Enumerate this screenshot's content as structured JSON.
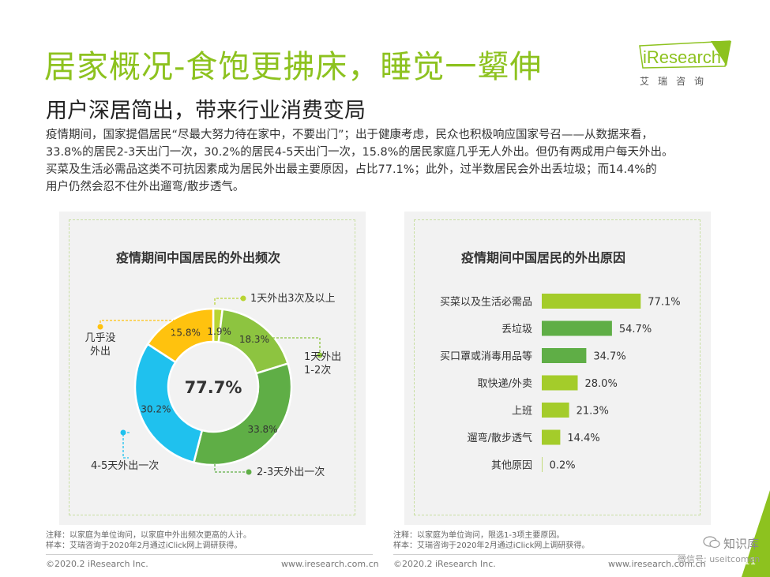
{
  "header": {
    "title": "居家概况-食饱更拂床，睡觉一颦伸",
    "subtitle": "用户深居简出，带来行业消费变局"
  },
  "logo": {
    "brand": "iResearch",
    "sub": "艾瑞咨询"
  },
  "description": [
    "疫情期间，国家提倡居民“尽最大努力待在家中，不要出门”；出于健康考虑，民众也积极响应国家号召——从数据来看，",
    "33.8%的居民2-3天出门一次，30.2%的居民4-5天出门一次，15.8%的居民家庭几乎无人外出。但仍有两成用户每天外出。",
    "买菜及生活必需品这类不可抗因素成为居民外出最主要原因，占比77.1%；此外，过半数居民会外出丢垃圾；而14.4%的",
    "用户仍然会忍不住外出遛弯/散步透气。"
  ],
  "chart_data": [
    {
      "type": "pie",
      "title": "疫情期间中国居民的外出频次",
      "center_label": "77.7%",
      "categories": [
        "1天外出3次及以上",
        "1天外出1-2次",
        "2-3天外出一次",
        "4-5天外出一次",
        "几乎没外出"
      ],
      "legend_labels": [
        "1天外出3次及以上",
        "1天外出\n1-2次",
        "2-3天外出一次",
        "4-5天外出一次",
        "几乎没\n外出"
      ],
      "values": [
        1.9,
        18.3,
        33.8,
        30.2,
        15.8
      ],
      "value_labels": [
        "1.9%",
        "18.3%",
        "33.8%",
        "30.2%",
        "15.8%"
      ],
      "colors": [
        "#b8d432",
        "#8dc440",
        "#5fae46",
        "#1fc1ee",
        "#ffc20e"
      ]
    },
    {
      "type": "bar",
      "orientation": "horizontal",
      "title": "疫情期间中国居民的外出原因",
      "categories": [
        "买菜以及生活必需品",
        "丢垃圾",
        "买口罩或消毒用品等",
        "取快递/外卖",
        "上班",
        "遛弯/散步透气",
        "其他原因"
      ],
      "values": [
        77.1,
        54.7,
        34.7,
        28.0,
        21.3,
        14.4,
        0.2
      ],
      "value_labels": [
        "77.1%",
        "54.7%",
        "34.7%",
        "28.0%",
        "21.3%",
        "14.4%",
        "0.2%"
      ],
      "colors": [
        "#a4cc2a",
        "#5fae46",
        "#5fae46",
        "#a4cc2a",
        "#a4cc2a",
        "#a4cc2a",
        "#a4cc2a"
      ]
    }
  ],
  "notes": {
    "left": [
      "注释：以家庭为单位询问，以家庭中外出频次更高的人计。",
      "样本：艾瑞咨询于2020年2月通过iClick网上调研获得。"
    ],
    "right": [
      "注释：以家庭为单位询问，限选1-3项主要原因。",
      "样本：艾瑞咨询于2020年2月通过iClick网上调研获得。"
    ]
  },
  "footer": {
    "copyright_left": "©2020.2 iResearch Inc.",
    "url_left": "www.iresearch.com.cn",
    "copyright_right": "©2020.2 iResearch Inc.",
    "url_right": "www.iresearch.com.cn",
    "page": "11"
  },
  "watermark": {
    "label": "知识库",
    "sub": "微信号: useitcomen"
  },
  "theme": {
    "accent": "#8dc21f"
  }
}
